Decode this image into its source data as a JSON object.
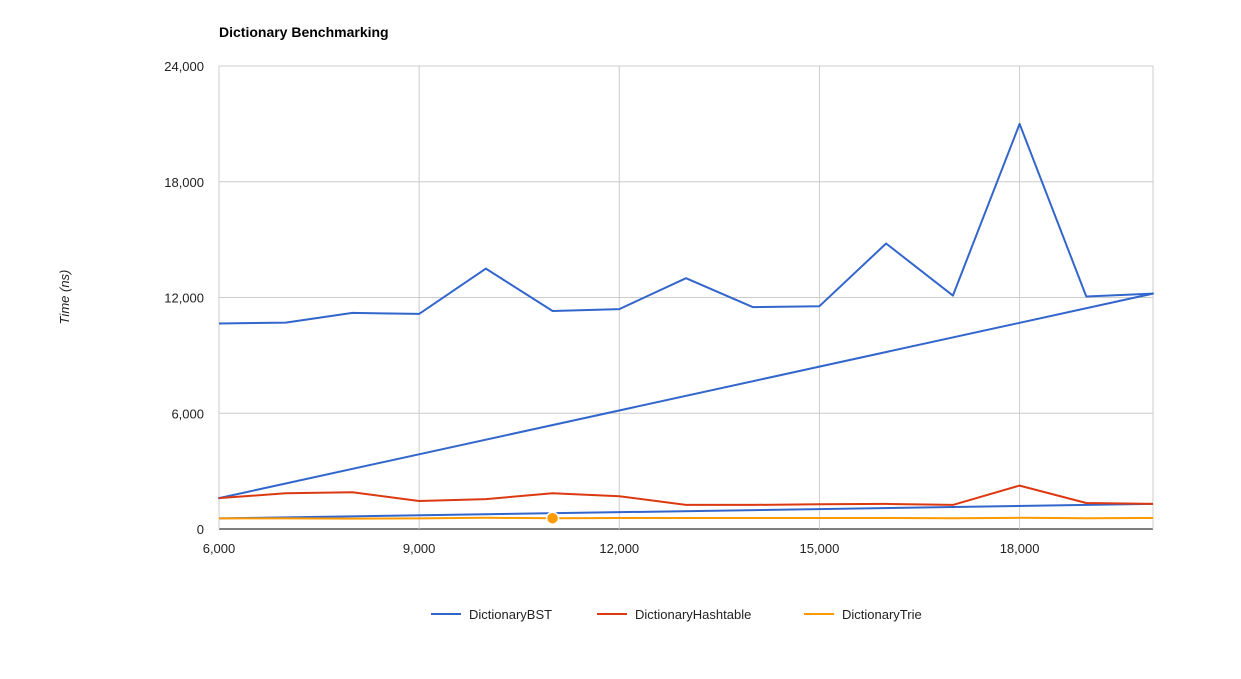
{
  "chart_data": {
    "type": "line",
    "title": "Dictionary Benchmarking",
    "xlabel": "",
    "ylabel": "Time (ns)",
    "xlim": [
      6000,
      20000
    ],
    "ylim": [
      0,
      24000
    ],
    "x_ticks": [
      6000,
      9000,
      12000,
      15000,
      18000
    ],
    "x_tick_labels": [
      "6,000",
      "9,000",
      "12,000",
      "15,000",
      "18,000"
    ],
    "y_ticks": [
      0,
      6000,
      12000,
      18000,
      24000
    ],
    "y_tick_labels": [
      "0",
      "6,000",
      "12,000",
      "18,000",
      "24,000"
    ],
    "grid": true,
    "legend_position": "bottom",
    "series": [
      {
        "name": "DictionaryBST",
        "color": "#3366cc",
        "x": [
          6000,
          7000,
          8000,
          9000,
          10000,
          11000,
          12000,
          13000,
          14000,
          15000,
          16000,
          17000,
          18000,
          19000,
          20000,
          6000,
          20000
        ],
        "y": [
          10650,
          10700,
          11200,
          11150,
          13500,
          11300,
          11400,
          13000,
          11500,
          11550,
          14800,
          12100,
          21000,
          12050,
          12200,
          1600,
          12200
        ]
      },
      {
        "name": "",
        "color": "#3366cc",
        "x": [
          6000,
          20000
        ],
        "y": [
          550,
          1300
        ]
      },
      {
        "name": "DictionaryHashtable",
        "color": "#dc3912",
        "x": [
          6000,
          7000,
          8000,
          9000,
          10000,
          11000,
          12000,
          13000,
          14000,
          15000,
          16000,
          17000,
          18000,
          19000,
          20000
        ],
        "y": [
          1600,
          1850,
          1900,
          1450,
          1550,
          1850,
          1700,
          1250,
          1250,
          1280,
          1300,
          1250,
          2250,
          1350,
          1300
        ]
      },
      {
        "name": "DictionaryTrie",
        "color": "#ff9900",
        "x": [
          6000,
          7000,
          8000,
          9000,
          10000,
          11000,
          12000,
          13000,
          14000,
          15000,
          16000,
          17000,
          18000,
          19000,
          20000
        ],
        "y": [
          550,
          550,
          540,
          550,
          580,
          560,
          570,
          570,
          570,
          570,
          570,
          560,
          580,
          560,
          570
        ]
      }
    ],
    "highlighted_point": {
      "series": "DictionaryTrie",
      "x": 11000,
      "y": 560
    }
  }
}
